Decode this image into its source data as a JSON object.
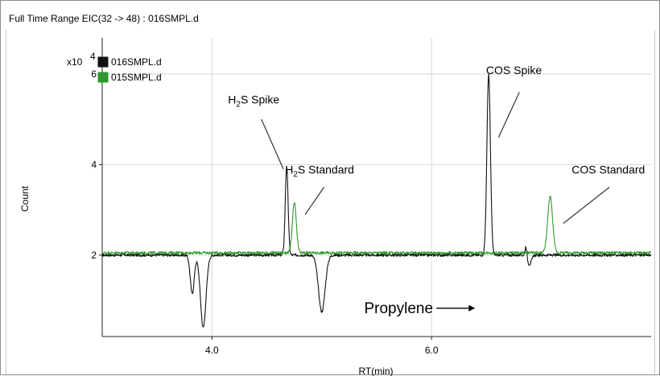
{
  "panel": {
    "title": "Full Time Range EIC(32 -> 48) : 016SMPL.d"
  },
  "chart_data": {
    "type": "line",
    "xlabel": "RT(min)",
    "ylabel": "Count",
    "y_exponent_label": "x10",
    "y_exponent_value": "4",
    "xlim": [
      3.0,
      8.0
    ],
    "ylim": [
      0.2,
      6.8
    ],
    "x_ticks": [
      {
        "value": 4.0,
        "label": "4.0"
      },
      {
        "value": 6.0,
        "label": "6.0"
      }
    ],
    "y_ticks": [
      {
        "value": 2,
        "label": "2"
      },
      {
        "value": 4,
        "label": "4"
      },
      {
        "value": 6,
        "label": "6"
      }
    ],
    "grid": true,
    "legend_position": "top-left",
    "series": [
      {
        "name": "016SMPL.d",
        "color": "#111111",
        "baseline": 2.0,
        "peaks": [
          {
            "rt": 3.82,
            "height": -0.85,
            "width": 0.018
          },
          {
            "rt": 3.92,
            "height": -1.6,
            "width": 0.025
          },
          {
            "rt": 4.68,
            "height": 1.95,
            "width": 0.013
          },
          {
            "rt": 5.0,
            "height": -1.25,
            "width": 0.03
          },
          {
            "rt": 6.52,
            "height": 4.0,
            "width": 0.016
          },
          {
            "rt": 6.86,
            "height": 0.25,
            "width": 0.008
          },
          {
            "rt": 6.89,
            "height": -0.2,
            "width": 0.02
          }
        ],
        "noise": 0.03,
        "drift": -0.0
      },
      {
        "name": "015SMPL.d",
        "color": "#2e9a2e",
        "baseline": 2.05,
        "peaks": [
          {
            "rt": 4.75,
            "height": 1.1,
            "width": 0.018
          },
          {
            "rt": 7.08,
            "height": 1.25,
            "width": 0.022
          }
        ],
        "noise": 0.03,
        "drift": -0.0
      }
    ],
    "annotations": [
      {
        "text_main": "H",
        "text_sub": "2",
        "text_rest": "S Spike",
        "label_rt": 4.38,
        "label_y": 5.35,
        "line_from": [
          4.45,
          5.0
        ],
        "line_to": [
          4.65,
          3.9
        ]
      },
      {
        "text_main": "H",
        "text_sub": "2",
        "text_rest": "S Standard",
        "label_rt": 4.98,
        "label_y": 3.8,
        "line_from": [
          5.02,
          3.5
        ],
        "line_to": [
          4.85,
          2.9
        ]
      },
      {
        "text_main": "COS Spike",
        "text_sub": "",
        "text_rest": "",
        "label_rt": 6.75,
        "label_y": 6.0,
        "line_from": [
          6.8,
          5.6
        ],
        "line_to": [
          6.61,
          4.6
        ]
      },
      {
        "text_main": "COS Standard",
        "text_sub": "",
        "text_rest": "",
        "label_rt": 7.61,
        "label_y": 3.8,
        "line_from": [
          7.62,
          3.5
        ],
        "line_to": [
          7.2,
          2.7
        ]
      }
    ],
    "callout": {
      "text": "Propylene",
      "rt": 5.7,
      "y": 0.72
    }
  }
}
